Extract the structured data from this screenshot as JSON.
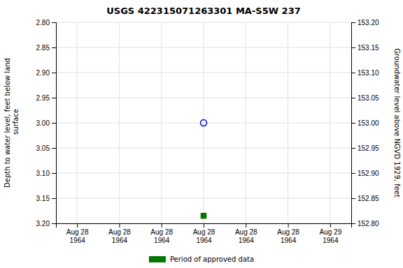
{
  "chart_data": {
    "type": "scatter",
    "title": "USGS 422315071263301 MA-S5W  237",
    "ylabel": "Depth to water level, feet below land\n surface",
    "y2label": "Groundwater level above NGVD 1929, feet",
    "categories": [
      "Aug 28\n1964",
      "Aug 28\n1964",
      "Aug 28\n1964",
      "Aug 28\n1964",
      "Aug 28\n1964",
      "Aug 28\n1964",
      "Aug 29\n1964"
    ],
    "series": [
      {
        "color": "#0000cc",
        "marker": "circle-open",
        "values": [
          null,
          null,
          null,
          3.0,
          null,
          null,
          null
        ]
      },
      {
        "name": "Period of approved data",
        "color": "#007700",
        "marker": "square",
        "values": [
          null,
          null,
          null,
          3.185,
          null,
          null,
          null
        ]
      }
    ],
    "ylim": [
      3.2,
      2.8
    ],
    "yticks": [
      {
        "value": 2.8,
        "label": "2.80"
      },
      {
        "value": 2.85,
        "label": "2.85"
      },
      {
        "value": 2.9,
        "label": "2.90"
      },
      {
        "value": 2.95,
        "label": "2.95"
      },
      {
        "value": 3.0,
        "label": "3.00"
      },
      {
        "value": 3.05,
        "label": "3.05"
      },
      {
        "value": 3.1,
        "label": "3.10"
      },
      {
        "value": 3.15,
        "label": "3.15"
      },
      {
        "value": 3.2,
        "label": "3.20"
      }
    ],
    "y2lim": [
      152.8,
      153.2
    ],
    "y2ticks": [
      {
        "value": 152.8,
        "label": "152.80"
      },
      {
        "value": 152.85,
        "label": "152.85"
      },
      {
        "value": 152.9,
        "label": "152.90"
      },
      {
        "value": 152.95,
        "label": "152.95"
      },
      {
        "value": 153.0,
        "label": "153.00"
      },
      {
        "value": 153.05,
        "label": "153.05"
      },
      {
        "value": 153.1,
        "label": "153.10"
      },
      {
        "value": 153.15,
        "label": "153.15"
      },
      {
        "value": 153.2,
        "label": "153.20"
      }
    ],
    "grid": true,
    "legend": "bottom"
  }
}
